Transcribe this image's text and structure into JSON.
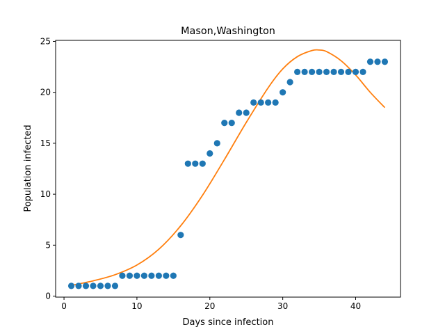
{
  "chart_data": {
    "type": "scatter",
    "title": "Mason,Washington",
    "xlabel": "Days since infection",
    "ylabel": "Population infected",
    "xlim": [
      -1.15,
      46.15
    ],
    "ylim": [
      -0.1,
      25.1
    ],
    "xticks": [
      0,
      10,
      20,
      30,
      40
    ],
    "yticks": [
      0,
      5,
      10,
      15,
      20,
      25
    ],
    "grid": false,
    "series": [
      {
        "kind": "points",
        "color": "#1f77b4",
        "x": [
          1,
          2,
          3,
          4,
          5,
          6,
          7,
          8,
          9,
          10,
          11,
          12,
          13,
          14,
          15,
          16,
          17,
          18,
          19,
          20,
          21,
          22,
          23,
          24,
          25,
          26,
          27,
          28,
          29,
          30,
          31,
          32,
          33,
          34,
          35,
          36,
          37,
          38,
          39,
          40,
          41,
          42,
          43,
          44
        ],
        "y": [
          1,
          1,
          1,
          1,
          1,
          1,
          1,
          2,
          2,
          2,
          2,
          2,
          2,
          2,
          2,
          6,
          13,
          13,
          13,
          14,
          15,
          17,
          17,
          18,
          18,
          19,
          19,
          19,
          19,
          20,
          21,
          22,
          22,
          22,
          22,
          22,
          22,
          22,
          22,
          22,
          22,
          23,
          23,
          23
        ]
      },
      {
        "kind": "fit-line",
        "color": "#ff7f0e",
        "x": [
          1,
          4,
          7,
          10,
          13,
          16,
          19,
          22,
          25,
          28,
          30,
          32,
          34,
          35,
          36,
          38,
          40,
          42,
          44
        ],
        "y": [
          1.05,
          1.5,
          2.1,
          3.05,
          4.6,
          6.9,
          9.9,
          13.4,
          17.05,
          20.45,
          22.3,
          23.5,
          24.1,
          24.15,
          24.0,
          23.1,
          21.7,
          20.0,
          18.5
        ]
      }
    ]
  }
}
